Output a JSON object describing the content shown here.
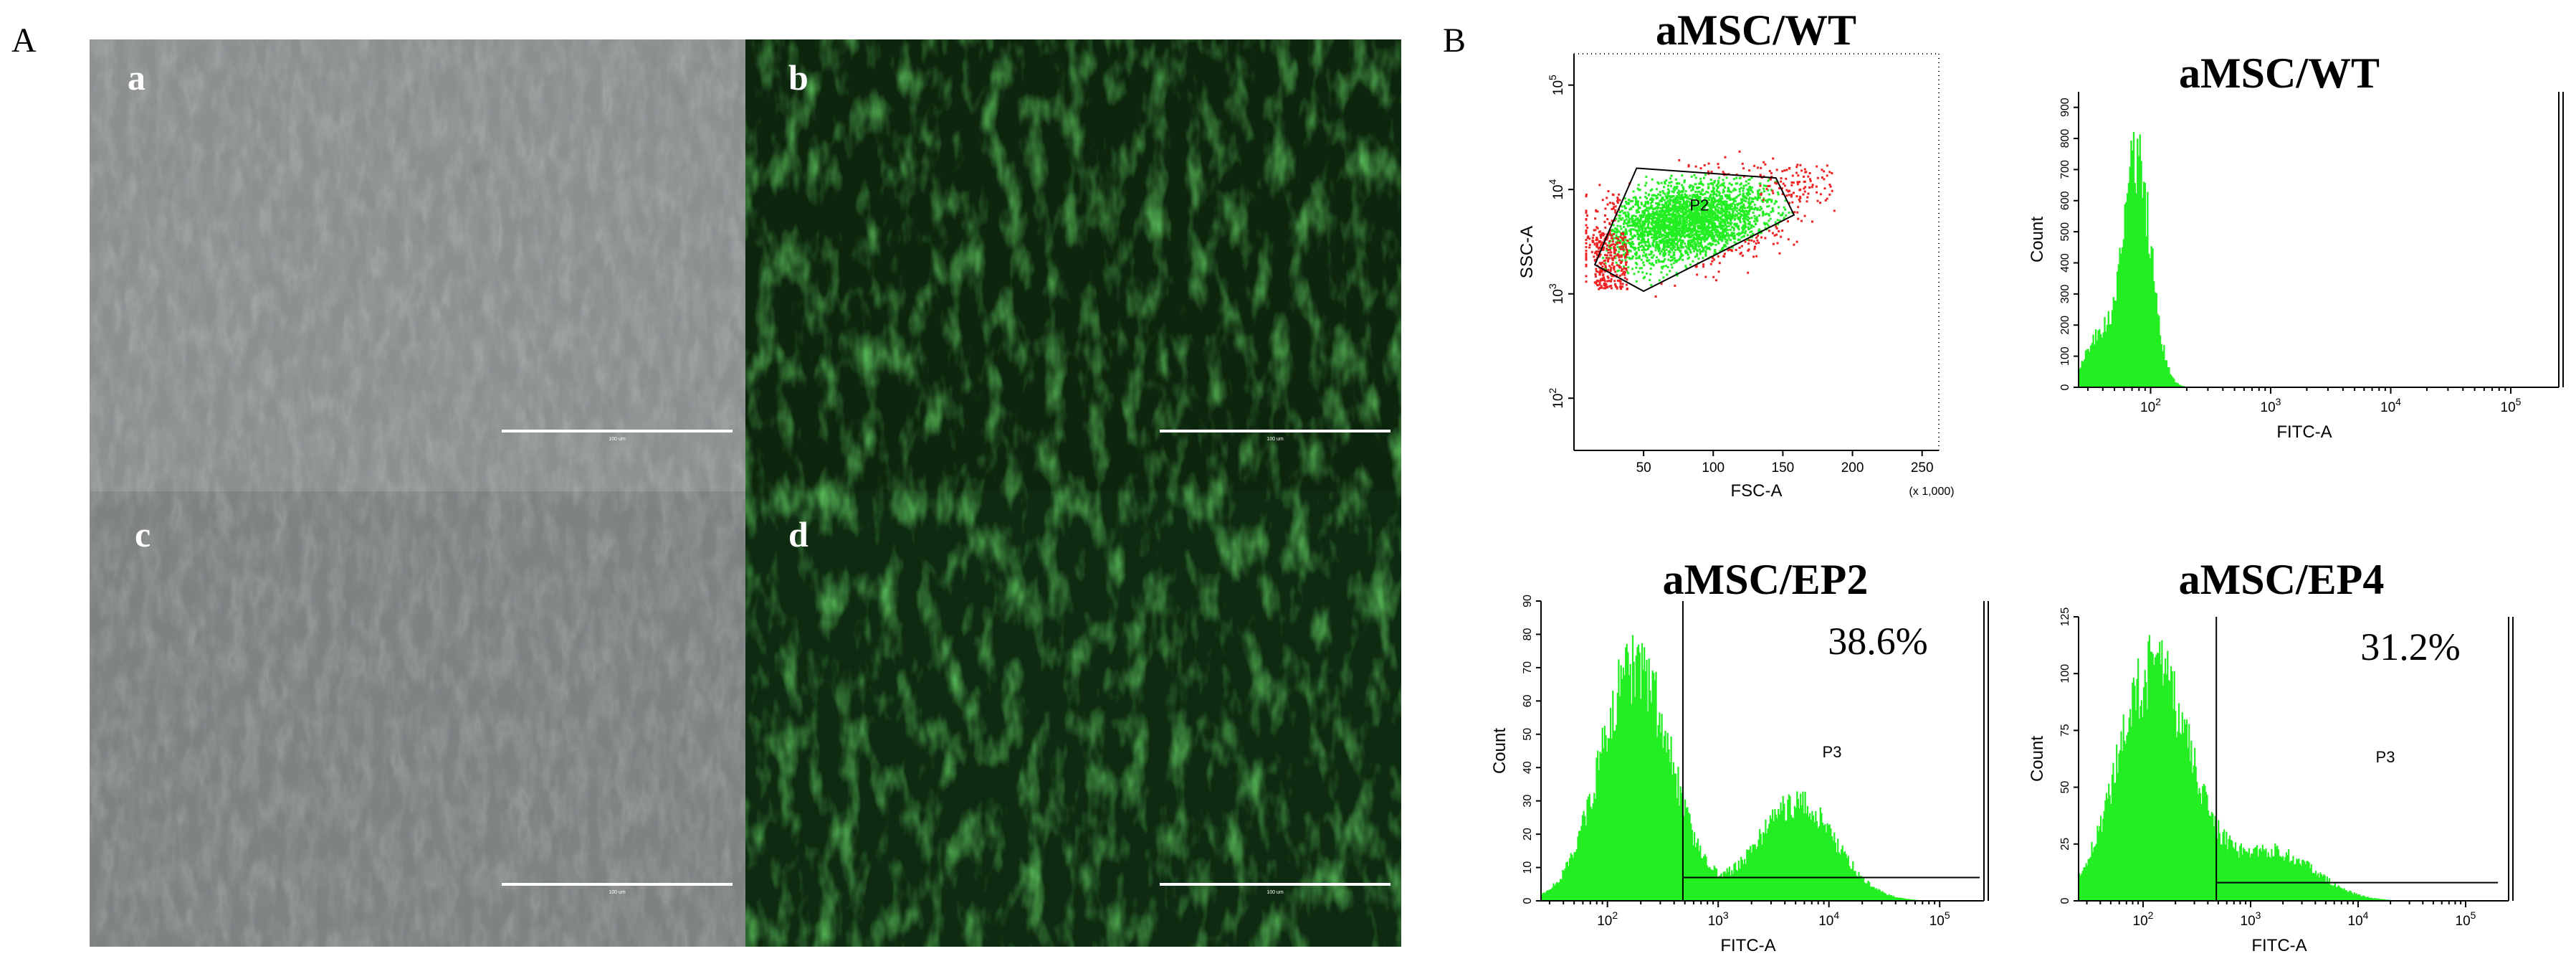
{
  "panel_a": {
    "letter": "A",
    "images": [
      {
        "letter": "a",
        "type": "brightfield",
        "scale_bar": "100 um"
      },
      {
        "letter": "b",
        "type": "fluorescence",
        "scale_bar": "100 um"
      },
      {
        "letter": "c",
        "type": "brightfield",
        "scale_bar": "100 um"
      },
      {
        "letter": "d",
        "type": "fluorescence",
        "scale_bar": "100 um"
      }
    ]
  },
  "panel_b": {
    "letter": "B",
    "colors": {
      "events": "#22ee22",
      "outside_gate": "#ee2222"
    }
  },
  "chart_data": [
    {
      "type": "scatter",
      "title": "aMSC/WT",
      "xlabel": "FSC-A",
      "ylabel": "SSC-A",
      "x_multiplier_label": "(x 1,000)",
      "xlim": [
        0,
        262
      ],
      "xticks": [
        50,
        100,
        150,
        200,
        250
      ],
      "ylim_log": [
        1.5,
        5.3
      ],
      "yticks": [
        {
          "exp": 2,
          "label": "10",
          "sup": "2"
        },
        {
          "exp": 3,
          "label": "10",
          "sup": "3"
        },
        {
          "exp": 4,
          "label": "10",
          "sup": "4"
        },
        {
          "exp": 5,
          "label": "10",
          "sup": "5"
        }
      ],
      "gate": {
        "name": "P2",
        "polygon": [
          [
            25,
            3950
          ],
          [
            45,
            16000
          ],
          [
            145,
            12900
          ],
          [
            158,
            5700
          ],
          [
            50,
            1060
          ],
          [
            15,
            1900
          ]
        ]
      }
    },
    {
      "type": "area",
      "title": "aMSC/WT",
      "xlabel": "FITC-A",
      "ylabel": "Count",
      "xlim_log": [
        1.4,
        5.4
      ],
      "xticks": [
        {
          "exp": 2,
          "label": "10",
          "sup": "2"
        },
        {
          "exp": 3,
          "label": "10",
          "sup": "3"
        },
        {
          "exp": 4,
          "label": "10",
          "sup": "4"
        },
        {
          "exp": 5,
          "label": "10",
          "sup": "5"
        }
      ],
      "ylim": [
        0,
        950
      ],
      "yticks": [
        0,
        100,
        200,
        300,
        400,
        500,
        600,
        700,
        800,
        900
      ],
      "peak_x": 75,
      "peak_y": 850
    },
    {
      "type": "area",
      "title": "aMSC/EP2",
      "xlabel": "FITC-A",
      "ylabel": "Count",
      "annotation": "38.6%",
      "gate": {
        "name": "P3",
        "x_start": 480,
        "x_end": 230000,
        "y": 7
      },
      "xlim_log": [
        1.4,
        5.4
      ],
      "xticks": [
        {
          "exp": 2,
          "label": "10",
          "sup": "2"
        },
        {
          "exp": 3,
          "label": "10",
          "sup": "3"
        },
        {
          "exp": 4,
          "label": "10",
          "sup": "4"
        },
        {
          "exp": 5,
          "label": "10",
          "sup": "5"
        }
      ],
      "ylim": [
        0,
        90
      ],
      "yticks": [
        0,
        10,
        20,
        30,
        40,
        50,
        60,
        70,
        80,
        90
      ]
    },
    {
      "type": "area",
      "title": "aMSC/EP4",
      "xlabel": "FITC-A",
      "ylabel": "Count",
      "annotation": "31.2%",
      "gate": {
        "name": "P3",
        "x_start": 480,
        "x_end": 200000,
        "y": 8
      },
      "xlim_log": [
        1.4,
        5.4
      ],
      "xticks": [
        {
          "exp": 2,
          "label": "10",
          "sup": "2"
        },
        {
          "exp": 3,
          "label": "10",
          "sup": "3"
        },
        {
          "exp": 4,
          "label": "10",
          "sup": "4"
        },
        {
          "exp": 5,
          "label": "10",
          "sup": "5"
        }
      ],
      "ylim": [
        0,
        125
      ],
      "yticks": [
        0,
        25,
        50,
        75,
        100,
        125
      ]
    }
  ]
}
